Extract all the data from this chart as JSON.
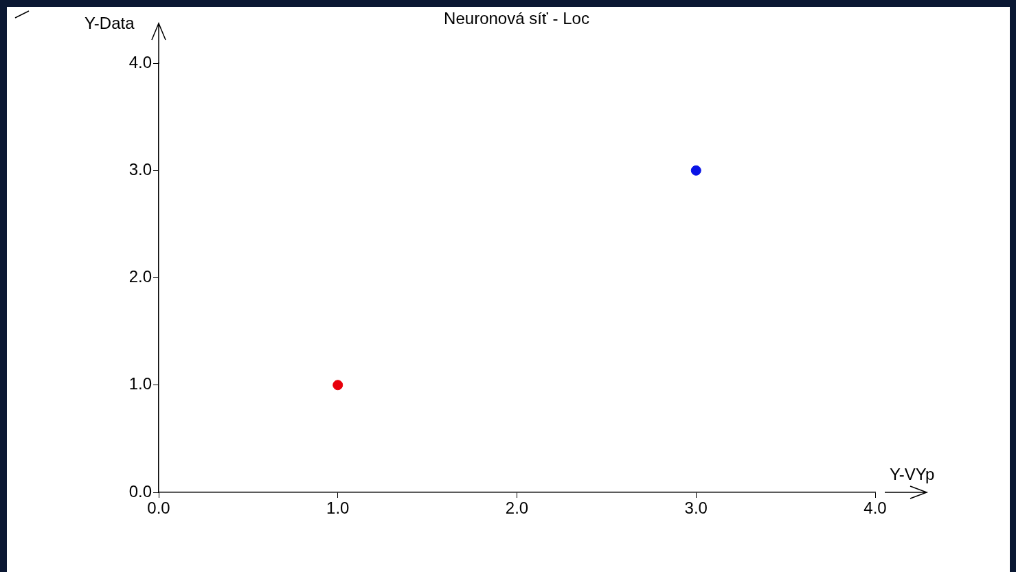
{
  "chart_data": {
    "type": "scatter",
    "title": "Neuronová síť - Loc",
    "xlabel": "Y-VYp",
    "ylabel": "Y-Data",
    "x": [
      1,
      3
    ],
    "series": [
      {
        "values": [
          1,
          3
        ],
        "colors": [
          "#e8000b",
          "#0a14e6"
        ]
      }
    ],
    "xlim": [
      0,
      4
    ],
    "ylim": [
      0,
      4
    ],
    "xticks": [
      {
        "value": 0,
        "label": "0.0"
      },
      {
        "value": 1,
        "label": "1.0"
      },
      {
        "value": 2,
        "label": "2.0"
      },
      {
        "value": 3,
        "label": "3.0"
      },
      {
        "value": 4,
        "label": "4.0"
      }
    ],
    "yticks": [
      {
        "value": 0,
        "label": "0.0"
      },
      {
        "value": 1,
        "label": "1.0"
      },
      {
        "value": 2,
        "label": "2.0"
      },
      {
        "value": 3,
        "label": "3.0"
      },
      {
        "value": 4,
        "label": "4.0"
      }
    ],
    "grid": false,
    "legend": false,
    "marker": "circle"
  }
}
